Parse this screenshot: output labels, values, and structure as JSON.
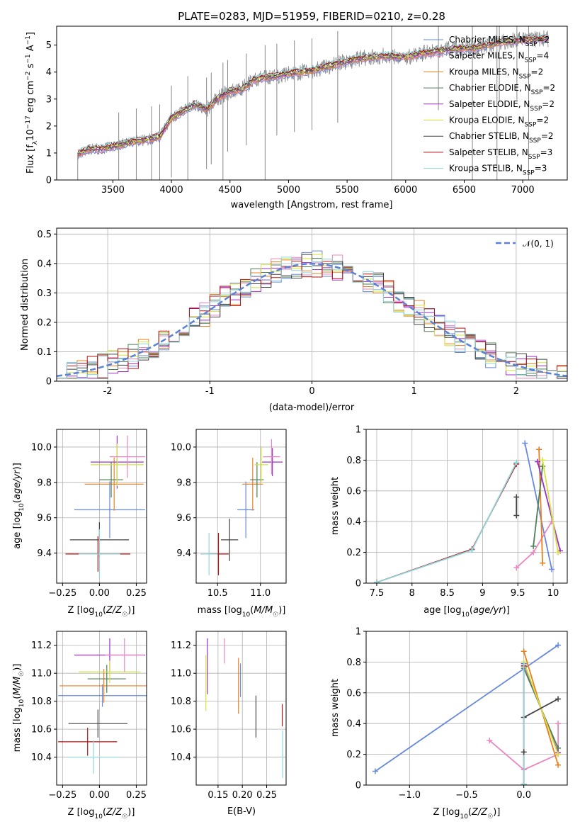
{
  "figure_title": "PLATE=0283, MJD=51959, FIBERID=0210, z=0.28",
  "legend_spectrum": [
    {
      "label": "Chabrier MILES, N_SSP=2",
      "color": "#6688dd"
    },
    {
      "label": "Salpeter MILES, N_SSP=4",
      "color": "#e887c0"
    },
    {
      "label": "Kroupa MILES, N_SSP=2",
      "color": "#e8801e"
    },
    {
      "label": "Chabrier ELODIE, N_SSP=2",
      "color": "#4f7f55"
    },
    {
      "label": "Salpeter ELODIE, N_SSP=2",
      "color": "#9b30c8"
    },
    {
      "label": "Kroupa ELODIE, N_SSP=2",
      "color": "#d4e33c"
    },
    {
      "label": "Chabrier STELIB, N_SSP=2",
      "color": "#444444"
    },
    {
      "label": "Salpeter STELIB, N_SSP=3",
      "color": "#b31212"
    },
    {
      "label": "Kroupa STELIB, N_SSP=3",
      "color": "#8ed6dc"
    }
  ],
  "chart_data": [
    {
      "type": "line",
      "panel": "spectrum",
      "xlabel": "wavelength [Angstrom, rest frame]",
      "ylabel": "Flux [f_λ 10^-17 erg cm^-2 s^-1 A^-1]",
      "xlim": [
        3020,
        7380
      ],
      "ylim": [
        0,
        5.7
      ],
      "xticks": [
        3500,
        4000,
        4500,
        5000,
        5500,
        6000,
        6500,
        7000
      ],
      "yticks": [
        0,
        1,
        2,
        3,
        4,
        5
      ],
      "grid": false,
      "legend_position": "right",
      "continuum": {
        "x": [
          3200,
          3300,
          3400,
          3500,
          3600,
          3700,
          3800,
          3900,
          4000,
          4100,
          4200,
          4300,
          4400,
          4500,
          4600,
          4700,
          4800,
          4900,
          5000,
          5200,
          5400,
          5600,
          5800,
          6000,
          6200,
          6400,
          6600,
          6800,
          7000,
          7200
        ],
        "y": [
          0.95,
          1.15,
          1.15,
          1.25,
          1.35,
          1.45,
          1.5,
          1.6,
          2.3,
          2.55,
          2.8,
          2.6,
          3.05,
          3.3,
          3.35,
          3.7,
          3.8,
          3.85,
          3.95,
          4.05,
          4.3,
          4.5,
          4.6,
          4.55,
          4.75,
          4.85,
          4.9,
          5.1,
          5.2,
          5.25
        ]
      },
      "data_spike_wavelengths": [
        3550,
        3700,
        3830,
        3900,
        4000,
        4140,
        4300,
        4340,
        4440,
        4480,
        4640,
        4800,
        4900,
        5050,
        5200,
        5420,
        5880,
        6280,
        6570,
        6780,
        6800,
        6950,
        7050
      ]
    },
    {
      "type": "line",
      "panel": "residuals",
      "xlabel": "(data-model)/error",
      "ylabel": "Normed distribution",
      "xlim": [
        -2.5,
        2.5
      ],
      "ylim": [
        0,
        0.52
      ],
      "xticks": [
        -2,
        -1,
        0,
        1,
        2
      ],
      "yticks": [
        0.0,
        0.1,
        0.2,
        0.3,
        0.4,
        0.5
      ],
      "grid": true,
      "legend_position": "top-right",
      "reference_label": "𝒩(0, 1)",
      "reference_color": "#5b82d6",
      "bin_width": 0.1,
      "histogram_bins_start": -2.5,
      "histogram_bins_end": 2.5
    },
    {
      "type": "scatter",
      "panel": "age-vs-Z",
      "xlabel": "Z [log10(Z/Z☉)]",
      "ylabel": "age [log10(age/yr)]",
      "xlim": [
        -0.29,
        0.32
      ],
      "ylim": [
        9.23,
        10.1
      ],
      "xticks": [
        -0.25,
        0.0,
        0.25
      ],
      "xtick_labels": [
        "−0.25",
        "0.00",
        "0.25"
      ],
      "yticks": [
        9.4,
        9.6,
        9.8,
        10.0
      ],
      "ytick_labels": [
        "9.4",
        "9.6",
        "9.8",
        "10.0"
      ],
      "grid": true,
      "points": [
        {
          "model": "Chabrier MILES",
          "x": 0.07,
          "y": 9.645,
          "xerr": 0.24,
          "yerr": 0.16
        },
        {
          "model": "Kroupa MILES",
          "x": 0.1,
          "y": 9.79,
          "xerr": 0.2,
          "yerr": 0.15
        },
        {
          "model": "Chabrier ELODIE",
          "x": 0.08,
          "y": 9.815,
          "xerr": 0.08,
          "yerr": 0.1
        },
        {
          "model": "Salpeter ELODIE",
          "x": 0.12,
          "y": 9.915,
          "xerr": 0.18,
          "yerr": 0.15
        },
        {
          "model": "Kroupa ELODIE",
          "x": 0.12,
          "y": 9.9,
          "xerr": 0.18,
          "yerr": 0.12
        },
        {
          "model": "Salpeter MILES",
          "x": 0.19,
          "y": 9.945,
          "xerr": 0.12,
          "yerr": 0.12
        },
        {
          "model": "Chabrier STELIB",
          "x": 0.0,
          "y": 9.475,
          "xerr": 0.2,
          "yerr": 0.1
        },
        {
          "model": "Salpeter STELIB",
          "x": -0.01,
          "y": 9.395,
          "xerr": 0.22,
          "yerr": 0.1
        },
        {
          "model": "Kroupa STELIB",
          "x": 0.0,
          "y": 9.395,
          "xerr": 0.14,
          "yerr": 0.14
        }
      ]
    },
    {
      "type": "scatter",
      "panel": "age-vs-mass",
      "xlabel": "mass [log10(M/M☉)]",
      "xlim": [
        10.25,
        11.3
      ],
      "ylim": [
        9.23,
        10.1
      ],
      "xticks": [
        10.5,
        11.0
      ],
      "xtick_labels": [
        "10.5",
        "11.0"
      ],
      "yticks": [
        9.4,
        9.6,
        9.8,
        10.0
      ],
      "ytick_labels": [
        "9.4",
        "9.6",
        "9.8",
        "10.0"
      ],
      "grid": true,
      "points": [
        {
          "model": "Chabrier MILES",
          "x": 10.83,
          "y": 9.645,
          "xerr": 0.1,
          "yerr": 0.16
        },
        {
          "model": "Kroupa MILES",
          "x": 10.91,
          "y": 9.79,
          "xerr": 0.12,
          "yerr": 0.15
        },
        {
          "model": "Chabrier ELODIE",
          "x": 10.96,
          "y": 9.815,
          "xerr": 0.08,
          "yerr": 0.1
        },
        {
          "model": "Salpeter ELODIE",
          "x": 11.14,
          "y": 9.915,
          "xerr": 0.12,
          "yerr": 0.08
        },
        {
          "model": "Kroupa ELODIE",
          "x": 11.01,
          "y": 9.9,
          "xerr": 0.08,
          "yerr": 0.1
        },
        {
          "model": "Salpeter MILES",
          "x": 11.13,
          "y": 9.945,
          "xerr": 0.1,
          "yerr": 0.1
        },
        {
          "model": "Chabrier STELIB",
          "x": 10.64,
          "y": 9.475,
          "xerr": 0.1,
          "yerr": 0.12
        },
        {
          "model": "Salpeter STELIB",
          "x": 10.51,
          "y": 9.395,
          "xerr": 0.12,
          "yerr": 0.12
        },
        {
          "model": "Kroupa STELIB",
          "x": 10.4,
          "y": 9.395,
          "xerr": 0.1,
          "yerr": 0.12
        }
      ]
    },
    {
      "type": "line",
      "panel": "mass-weight-vs-age",
      "xlabel": "age [log10(age/yr)]",
      "ylabel": "mass weight",
      "xlim": [
        7.35,
        10.2
      ],
      "ylim": [
        0,
        1
      ],
      "xticks": [
        7.5,
        8.0,
        8.5,
        9.0,
        9.5,
        10.0
      ],
      "yticks": [
        0.0,
        0.2,
        0.4,
        0.6,
        0.8,
        1.0
      ],
      "grid": true,
      "series": [
        {
          "model": "Chabrier MILES",
          "x": [
            9.6,
            9.98
          ],
          "y": [
            0.91,
            0.09
          ]
        },
        {
          "model": "Salpeter MILES",
          "x": [
            9.48,
            9.72,
            9.98
          ],
          "y": [
            0.1,
            0.2,
            0.4
          ]
        },
        {
          "model": "Kroupa MILES",
          "x": [
            9.8,
            9.85
          ],
          "y": [
            0.87,
            0.13
          ]
        },
        {
          "model": "Chabrier ELODIE",
          "x": [
            9.72,
            9.85
          ],
          "y": [
            0.24,
            0.76
          ]
        },
        {
          "model": "Salpeter ELODIE",
          "x": [
            9.78,
            10.1
          ],
          "y": [
            0.79,
            0.21
          ]
        },
        {
          "model": "Kroupa ELODIE",
          "x": [
            9.85,
            10.07
          ],
          "y": [
            0.8,
            0.2
          ]
        },
        {
          "model": "Chabrier STELIB",
          "x": [
            9.48,
            9.48
          ],
          "y": [
            0.44,
            0.56
          ]
        },
        {
          "model": "Salpeter STELIB",
          "x": [
            7.5,
            8.85,
            9.48
          ],
          "y": [
            0.005,
            0.22,
            0.775
          ]
        },
        {
          "model": "Kroupa STELIB",
          "x": [
            7.5,
            8.85,
            9.48
          ],
          "y": [
            0.005,
            0.215,
            0.785
          ]
        }
      ]
    },
    {
      "type": "scatter",
      "panel": "mass-vs-Z",
      "xlabel": "Z [log10(Z/Z☉)]",
      "ylabel": "mass [log10(M/M☉)]",
      "xlim": [
        -0.29,
        0.32
      ],
      "ylim": [
        10.2,
        11.3
      ],
      "xticks": [
        -0.25,
        0.0,
        0.25
      ],
      "xtick_labels": [
        "−0.25",
        "0.00",
        "0.25"
      ],
      "yticks": [
        10.4,
        10.6,
        10.8,
        11.0,
        11.2
      ],
      "ytick_labels": [
        "10.4",
        "10.6",
        "10.8",
        "11.0",
        "11.2"
      ],
      "grid": true,
      "points": [
        {
          "model": "Chabrier MILES",
          "x": 0.02,
          "y": 10.84,
          "xerr": 0.3,
          "yerr": 0.08
        },
        {
          "model": "Kroupa MILES",
          "x": 0.03,
          "y": 10.91,
          "xerr": 0.3,
          "yerr": 0.12
        },
        {
          "model": "Chabrier ELODIE",
          "x": 0.05,
          "y": 10.96,
          "xerr": 0.13,
          "yerr": 0.1
        },
        {
          "model": "Salpeter ELODIE",
          "x": 0.07,
          "y": 11.13,
          "xerr": 0.24,
          "yerr": 0.12
        },
        {
          "model": "Kroupa ELODIE",
          "x": 0.07,
          "y": 11.01,
          "xerr": 0.21,
          "yerr": 0.08
        },
        {
          "model": "Salpeter MILES",
          "x": 0.17,
          "y": 11.13,
          "xerr": 0.13,
          "yerr": 0.12
        },
        {
          "model": "Chabrier STELIB",
          "x": -0.01,
          "y": 10.64,
          "xerr": 0.2,
          "yerr": 0.1
        },
        {
          "model": "Salpeter STELIB",
          "x": -0.08,
          "y": 10.51,
          "xerr": 0.2,
          "yerr": 0.1
        },
        {
          "model": "Kroupa STELIB",
          "x": -0.04,
          "y": 10.4,
          "xerr": 0.17,
          "yerr": 0.12
        }
      ]
    },
    {
      "type": "scatter",
      "panel": "mass-vs-EBV",
      "xlabel": "E(B-V)",
      "xlim": [
        0.105,
        0.29
      ],
      "ylim": [
        10.2,
        11.3
      ],
      "xticks": [
        0.15,
        0.2,
        0.25
      ],
      "xtick_labels": [
        "0.15",
        "0.20",
        "0.25"
      ],
      "yticks": [
        10.4,
        10.6,
        10.8,
        11.0,
        11.2
      ],
      "ytick_labels": [
        "10.4",
        "10.6",
        "10.8",
        "11.0",
        "11.2"
      ],
      "grid": true,
      "points": [
        {
          "model": "Kroupa ELODIE",
          "x": 0.125,
          "y": 10.93,
          "yerr": 0.2
        },
        {
          "model": "Salpeter ELODIE",
          "x": 0.128,
          "y": 11.05,
          "yerr": 0.2
        },
        {
          "model": "Salpeter MILES",
          "x": 0.163,
          "y": 11.16,
          "yerr": 0.09
        },
        {
          "model": "Kroupa MILES",
          "x": 0.192,
          "y": 10.91,
          "yerr": 0.2
        },
        {
          "model": "Chabrier MILES",
          "x": 0.196,
          "y": 10.95,
          "yerr": 0.12
        },
        {
          "model": "Chabrier STELIB",
          "x": 0.228,
          "y": 10.69,
          "yerr": 0.15
        },
        {
          "model": "Salpeter STELIB",
          "x": 0.282,
          "y": 10.7,
          "yerr": 0.08
        },
        {
          "model": "Kroupa STELIB",
          "x": 0.283,
          "y": 10.42,
          "yerr": 0.17
        }
      ]
    },
    {
      "type": "line",
      "panel": "mass-weight-vs-Z",
      "xlabel": "Z [log10(Z/Z☉)]",
      "ylabel": "mass weight",
      "xlim": [
        -1.38,
        0.38
      ],
      "ylim": [
        0,
        1
      ],
      "xticks": [
        -1.0,
        -0.5,
        0.0
      ],
      "xtick_labels": [
        "−1.0",
        "−0.5",
        "0.0"
      ],
      "yticks": [
        0.0,
        0.2,
        0.4,
        0.6,
        0.8,
        1.0
      ],
      "grid": true,
      "series": [
        {
          "model": "Chabrier MILES",
          "x": [
            -1.3,
            0.3
          ],
          "y": [
            0.09,
            0.91
          ]
        },
        {
          "model": "Salpeter MILES",
          "x": [
            -0.3,
            0.0,
            0.3,
            0.3
          ],
          "y": [
            0.29,
            0.1,
            0.2,
            0.4
          ]
        },
        {
          "model": "Kroupa MILES",
          "x": [
            0.0,
            0.3
          ],
          "y": [
            0.87,
            0.13
          ]
        },
        {
          "model": "Chabrier ELODIE",
          "x": [
            0.0,
            0.3
          ],
          "y": [
            0.76,
            0.24
          ]
        },
        {
          "model": "Salpeter ELODIE",
          "x": [
            0.0,
            0.3
          ],
          "y": [
            0.79,
            0.21
          ]
        },
        {
          "model": "Kroupa ELODIE",
          "x": [
            0.0,
            0.3
          ],
          "y": [
            0.8,
            0.2
          ]
        },
        {
          "model": "Chabrier STELIB",
          "x": [
            0.0,
            0.3
          ],
          "y": [
            0.44,
            0.56
          ]
        },
        {
          "model": "Salpeter STELIB",
          "x": [
            0.0,
            0.0
          ],
          "y": [
            0.005,
            0.775
          ]
        },
        {
          "model": "Kroupa STELIB",
          "x": [
            0.0,
            0.0
          ],
          "y": [
            0.005,
            0.785
          ]
        }
      ],
      "extra_markers": [
        {
          "model": "Chabrier STELIB",
          "x": 0.0,
          "y": 0.215
        }
      ]
    }
  ]
}
